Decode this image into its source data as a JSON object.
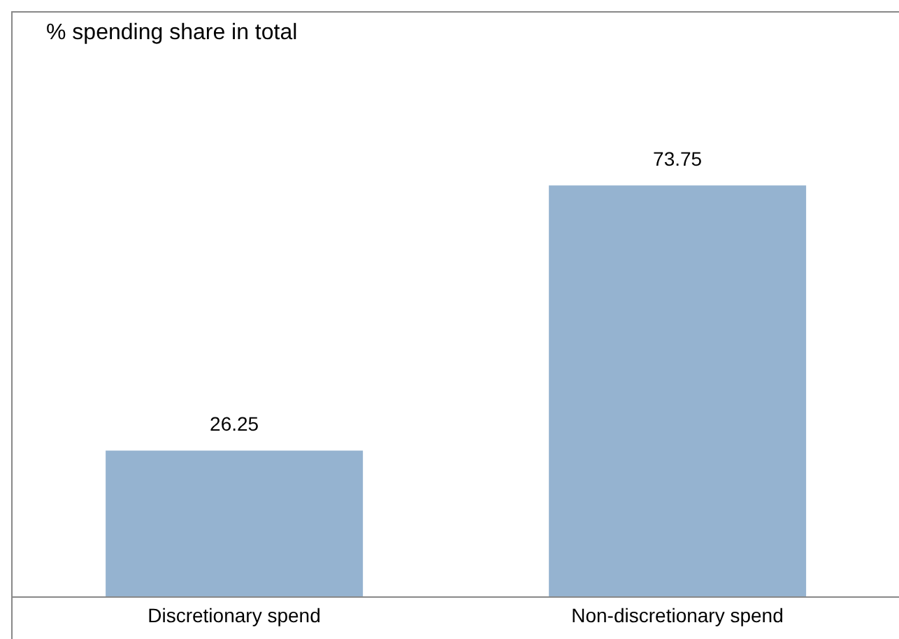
{
  "chart_data": {
    "type": "bar",
    "annotations": [
      "% spending share in total"
    ],
    "categories": [
      "Discretionary spend",
      "Non-discretionary spend"
    ],
    "values": [
      26.25,
      73.75
    ],
    "color": "#95b3d0",
    "data_labels": true
  }
}
